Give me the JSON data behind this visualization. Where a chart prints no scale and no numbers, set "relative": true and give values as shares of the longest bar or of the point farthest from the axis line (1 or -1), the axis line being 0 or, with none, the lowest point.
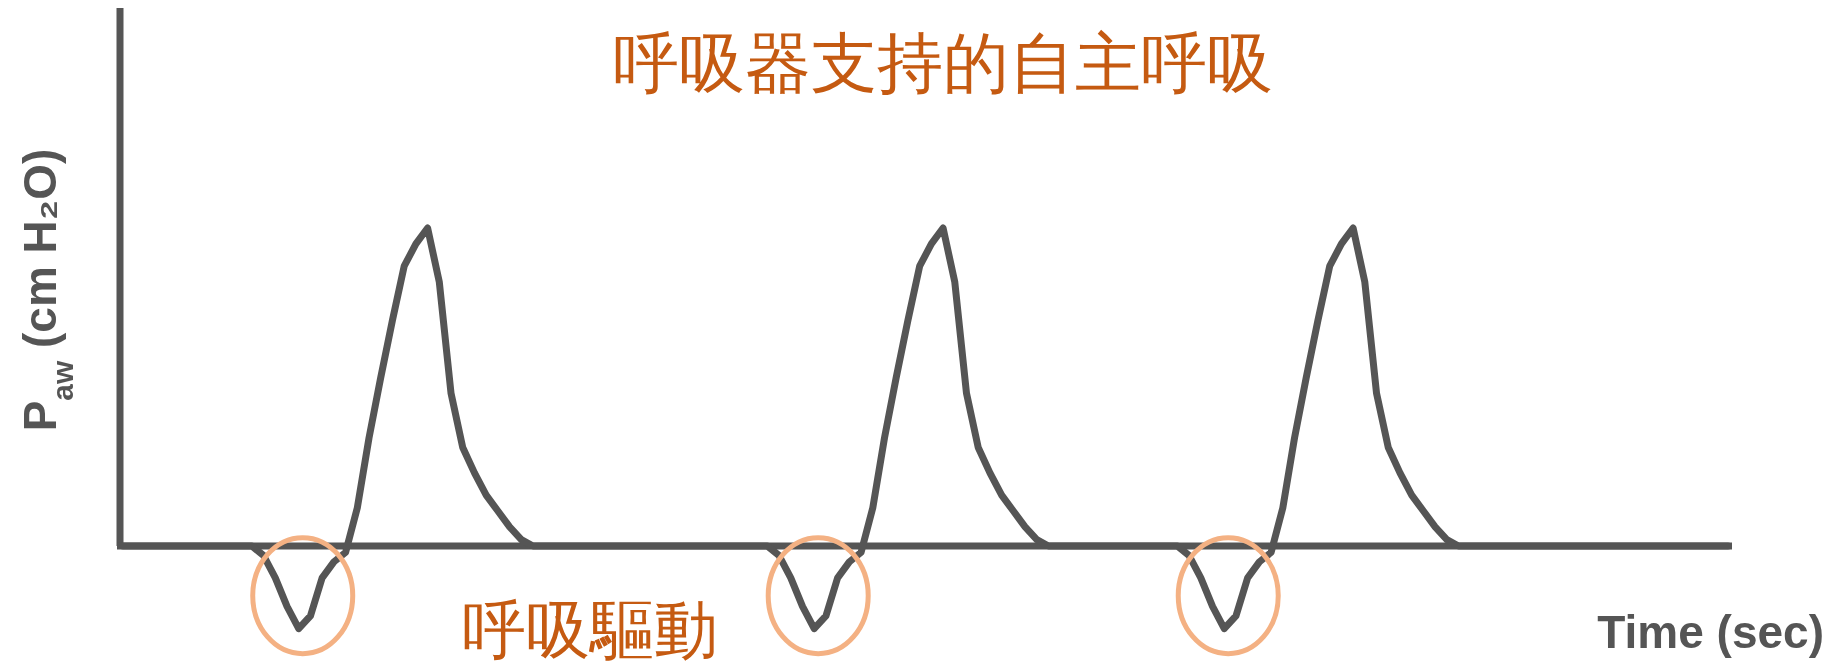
{
  "chart_data": {
    "type": "line",
    "relative": true,
    "title": "呼吸器支持的自主呼吸",
    "xlabel": "Time (sec)",
    "ylabel": "P$_{aw}$ (cm H₂O)",
    "annotations": [
      "呼吸驅動"
    ],
    "line_style": "solid",
    "categories": [
      null,
      null,
      null,
      null,
      null,
      null,
      null,
      null,
      null,
      null,
      null,
      null,
      null,
      null,
      null,
      null,
      null,
      null,
      null,
      null,
      null,
      null,
      null,
      null,
      null,
      null,
      null,
      null,
      null,
      null,
      null,
      null,
      null,
      null,
      null,
      null,
      null,
      null,
      null,
      null,
      null,
      null,
      null,
      null,
      null,
      null,
      null,
      null,
      null,
      null,
      null,
      null,
      null,
      null,
      null,
      null,
      null,
      null,
      null,
      null,
      null,
      null,
      null,
      null,
      null,
      null,
      null,
      null,
      null,
      null,
      null,
      null,
      null,
      null,
      null,
      null,
      null,
      null,
      null,
      null,
      null,
      null,
      null,
      null,
      null,
      null,
      null,
      null,
      null,
      null,
      null,
      null,
      null,
      null,
      null,
      null,
      null,
      null,
      null,
      null,
      null,
      null,
      null,
      null,
      null,
      null,
      null,
      null,
      null,
      null,
      null,
      null,
      null,
      null,
      null,
      null,
      null,
      null,
      null,
      null,
      null,
      null,
      null,
      null,
      null,
      null,
      null,
      null,
      null,
      null,
      null,
      null,
      null,
      null,
      null,
      null,
      null,
      null
    ],
    "series": [
      {
        "color": "#555555",
        "values": [
          0,
          0,
          0,
          0,
          0,
          0,
          0,
          0,
          0,
          0,
          0,
          0,
          -0.03,
          -0.1,
          -0.19,
          -0.26,
          -0.22,
          -0.1,
          -0.05,
          -0.02,
          0.12,
          0.34,
          0.53,
          0.71,
          0.88,
          0.95,
          1,
          0.83,
          0.48,
          0.31,
          0.23,
          0.16,
          0.11,
          0.06,
          0.02,
          0,
          0,
          0,
          0,
          0,
          0,
          0,
          0,
          0,
          0,
          0,
          0,
          0,
          0,
          0,
          0,
          0,
          0,
          0,
          0,
          0,
          -0.03,
          -0.1,
          -0.19,
          -0.26,
          -0.22,
          -0.1,
          -0.05,
          -0.02,
          0.12,
          0.34,
          0.53,
          0.71,
          0.88,
          0.95,
          1,
          0.83,
          0.48,
          0.31,
          0.23,
          0.16,
          0.11,
          0.06,
          0.02,
          0,
          0,
          0,
          0,
          0,
          0,
          0,
          0,
          0,
          0,
          0,
          0,
          -0.03,
          -0.1,
          -0.19,
          -0.26,
          -0.22,
          -0.1,
          -0.05,
          -0.02,
          0.12,
          0.34,
          0.53,
          0.71,
          0.88,
          0.95,
          1,
          0.83,
          0.48,
          0.31,
          0.23,
          0.16,
          0.11,
          0.06,
          0.02,
          0,
          0,
          0,
          0,
          0,
          0,
          0,
          0,
          0,
          0,
          0,
          0,
          0,
          0,
          0,
          0,
          0,
          0,
          0,
          0,
          0,
          0,
          0,
          0
        ]
      }
    ]
  }
}
